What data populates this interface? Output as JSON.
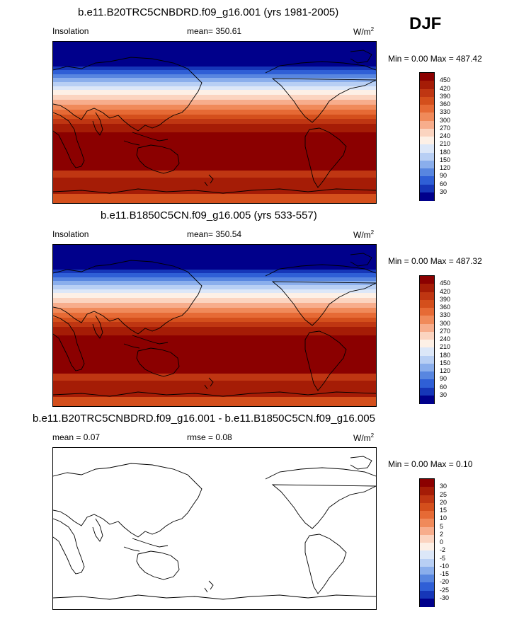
{
  "season": "DJF",
  "panels": [
    {
      "title": "b.e11.B20TRC5CNBDRD.f09_g16.001 (yrs 1981-2005)",
      "left_label": "Insolation",
      "mean_text": "mean= 350.61",
      "units": "W/m",
      "units_sup": "2",
      "minmax": "Min =  0.00 Max = 487.42"
    },
    {
      "title": "b.e11.B1850C5CN.f09_g16.005 (yrs 533-557)",
      "left_label": "Insolation",
      "mean_text": "mean= 350.54",
      "units": "W/m",
      "units_sup": "2",
      "minmax": "Min =  0.00 Max = 487.32"
    },
    {
      "title": "b.e11.B20TRC5CNBDRD.f09_g16.001 - b.e11.B1850C5CN.f09_g16.005",
      "left_label": "mean =   0.07",
      "mean_text": "rmse =   0.08",
      "units": "W/m",
      "units_sup": "2",
      "minmax": "Min =  0.00 Max =   0.10"
    }
  ],
  "colorbar_abs": {
    "labels": [
      "450",
      "420",
      "390",
      "360",
      "330",
      "300",
      "270",
      "240",
      "210",
      "180",
      "150",
      "120",
      "90",
      "60",
      "30"
    ],
    "colors": [
      "#8b0000",
      "#a51c06",
      "#bf3612",
      "#d44f1c",
      "#e66a35",
      "#f08a5a",
      "#f7ad8c",
      "#fbd4c0",
      "#fdf0e6",
      "#dce7f8",
      "#b8cff4",
      "#8aaeec",
      "#5886e0",
      "#2f5fd6",
      "#1636b8",
      "#00008b"
    ]
  },
  "colorbar_diff": {
    "labels": [
      "30",
      "25",
      "20",
      "15",
      "10",
      "5",
      "2",
      "0",
      "-2",
      "-5",
      "-10",
      "-15",
      "-20",
      "-25",
      "-30"
    ],
    "colors": [
      "#8b0000",
      "#a51c06",
      "#bf3612",
      "#d44f1c",
      "#e66a35",
      "#f08a5a",
      "#f7ad8c",
      "#fbd4c0",
      "#fdf0e6",
      "#dce7f8",
      "#b8cff4",
      "#8aaeec",
      "#5886e0",
      "#2f5fd6",
      "#1636b8",
      "#00008b"
    ]
  },
  "chart_data": {
    "type": "heatmap",
    "variable": "Insolation",
    "season": "DJF",
    "units": "W/m2",
    "panels": [
      {
        "title": "b.e11.B20TRC5CNBDRD.f09_g16.001 (yrs 1981-2005)",
        "mean": 350.61,
        "min": 0.0,
        "max": 487.42
      },
      {
        "title": "b.e11.B1850C5CN.f09_g16.005 (yrs 533-557)",
        "mean": 350.54,
        "min": 0.0,
        "max": 487.32
      },
      {
        "title": "b.e11.B20TRC5CNBDRD.f09_g16.001 - b.e11.B1850C5CN.f09_g16.005",
        "mean": 0.07,
        "rmse": 0.08,
        "min": 0.0,
        "max": 0.1
      }
    ],
    "contour_levels_abs": [
      30,
      60,
      90,
      120,
      150,
      180,
      210,
      240,
      270,
      300,
      330,
      360,
      390,
      420,
      450
    ],
    "contour_levels_diff": [
      -30,
      -25,
      -20,
      -15,
      -10,
      -5,
      -2,
      0,
      2,
      5,
      10,
      15,
      20,
      25,
      30
    ]
  }
}
